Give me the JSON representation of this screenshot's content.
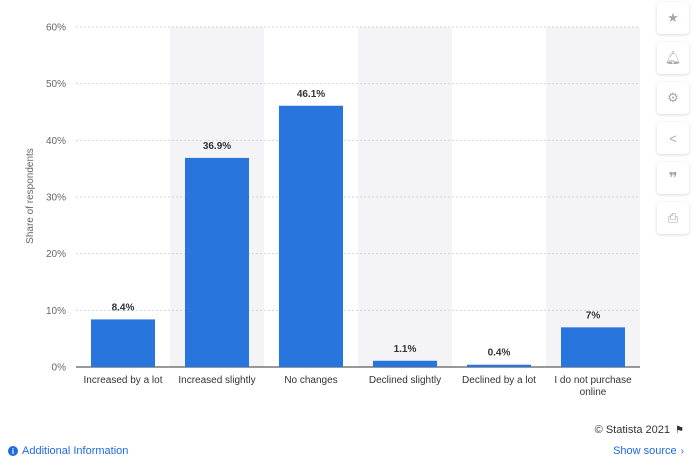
{
  "chart_data": {
    "type": "bar",
    "categories": [
      "Increased by a lot",
      "Increased slightly",
      "No changes",
      "Declined slightly",
      "Declined by a lot",
      "I do not purchase online"
    ],
    "category_lines": [
      [
        "Increased by a lot"
      ],
      [
        "Increased slightly"
      ],
      [
        "No changes"
      ],
      [
        "Declined slightly"
      ],
      [
        "Declined by a lot"
      ],
      [
        "I do not purchase",
        "online"
      ]
    ],
    "values": [
      8.4,
      36.9,
      46.1,
      1.1,
      0.4,
      7
    ],
    "data_labels": [
      "8.4%",
      "36.9%",
      "46.1%",
      "1.1%",
      "0.4%",
      "7%"
    ],
    "ylabel": "Share of respondents",
    "xlabel": "",
    "ylim": [
      0,
      60
    ],
    "yticks": [
      0,
      10,
      20,
      30,
      40,
      50,
      60
    ],
    "ytick_labels": [
      "0%",
      "10%",
      "20%",
      "30%",
      "40%",
      "50%",
      "60%"
    ],
    "grid": "horizontal dashed",
    "alternating_column_shading": true,
    "bar_color": "#2876dd"
  },
  "toolbar": {
    "icons": [
      "star-icon",
      "bell-icon",
      "gear-icon",
      "share-icon",
      "quote-icon",
      "print-icon"
    ]
  },
  "footer": {
    "additional_info": "Additional Information",
    "copyright": "© Statista 2021",
    "show_source": "Show source"
  },
  "colors": {
    "accent": "#1e6ae1",
    "bar": "#2876dd",
    "shade": "#f4f4f6"
  }
}
